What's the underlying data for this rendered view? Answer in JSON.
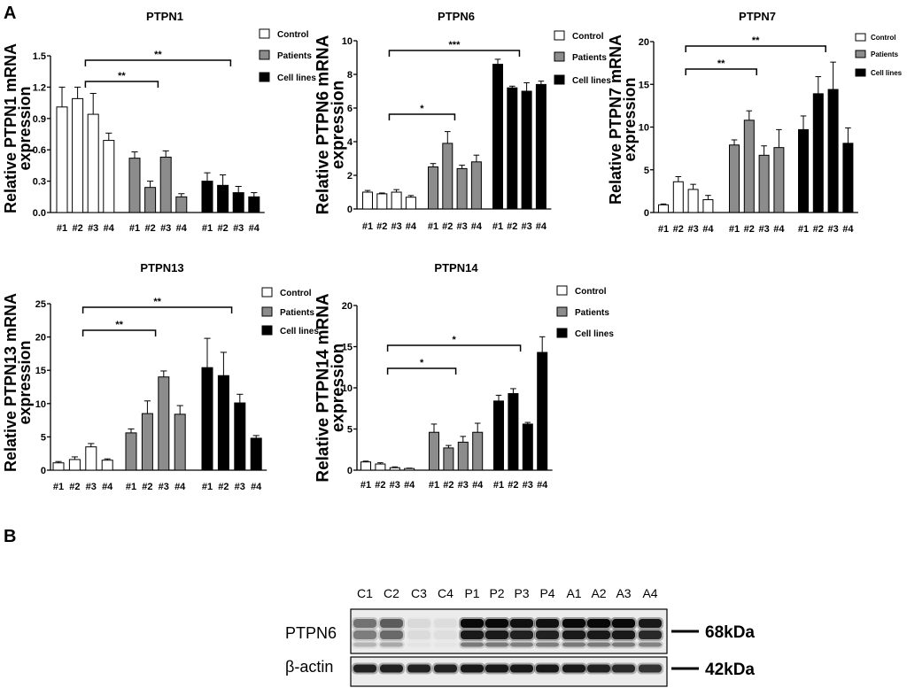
{
  "figure": {
    "panel_a_label": "A",
    "panel_b_label": "B"
  },
  "chart_data": [
    {
      "type": "bar",
      "title": "PTPN1",
      "ylabel": [
        "Relative PTPN1 mRNA",
        "expression"
      ],
      "ylim": [
        0,
        1.5
      ],
      "yticks": [
        "0.0",
        "0.3",
        "0.6",
        "0.9",
        "1.2",
        "1.5"
      ],
      "categories": [
        "#1",
        "#2",
        "#3",
        "#4"
      ],
      "grid": false,
      "legend_position": "top-right",
      "series": [
        {
          "name": "Control",
          "color": "#ffffff",
          "values": [
            1.01,
            1.09,
            0.94,
            0.69
          ],
          "errors": [
            0.19,
            0.11,
            0.2,
            0.07
          ]
        },
        {
          "name": "Patients",
          "color": "#8c8c8c",
          "values": [
            0.52,
            0.24,
            0.53,
            0.15
          ],
          "errors": [
            0.06,
            0.06,
            0.06,
            0.03
          ]
        },
        {
          "name": "Cell lines",
          "color": "#000000",
          "values": [
            0.3,
            0.26,
            0.19,
            0.15
          ],
          "errors": [
            0.08,
            0.1,
            0.06,
            0.04
          ]
        }
      ],
      "significance": [
        {
          "label": "**",
          "compare": [
            0,
            1
          ]
        },
        {
          "label": "**",
          "compare": [
            0,
            2
          ]
        }
      ]
    },
    {
      "type": "bar",
      "title": "PTPN6",
      "ylabel": [
        "Relative PTPN6 mRNA",
        "expression"
      ],
      "ylim": [
        0,
        10
      ],
      "yticks": [
        "0",
        "2",
        "4",
        "6",
        "8",
        "10"
      ],
      "categories": [
        "#1",
        "#2",
        "#3",
        "#4"
      ],
      "grid": false,
      "legend_position": "top-right",
      "series": [
        {
          "name": "Control",
          "color": "#ffffff",
          "values": [
            1.0,
            0.9,
            1.0,
            0.7
          ],
          "errors": [
            0.1,
            0.05,
            0.15,
            0.1
          ]
        },
        {
          "name": "Patients",
          "color": "#8c8c8c",
          "values": [
            2.5,
            3.9,
            2.4,
            2.8
          ],
          "errors": [
            0.2,
            0.7,
            0.2,
            0.4
          ]
        },
        {
          "name": "Cell lines",
          "color": "#000000",
          "values": [
            8.6,
            7.2,
            7.0,
            7.4
          ],
          "errors": [
            0.3,
            0.1,
            0.5,
            0.2
          ]
        }
      ],
      "significance": [
        {
          "label": "*",
          "compare": [
            0,
            1
          ]
        },
        {
          "label": "***",
          "compare": [
            0,
            2
          ]
        }
      ]
    },
    {
      "type": "bar",
      "title": "PTPN7",
      "ylabel": [
        "Relative PTPN7 mRNA",
        "expression"
      ],
      "ylim": [
        0,
        20
      ],
      "yticks": [
        "0",
        "5",
        "10",
        "15",
        "20"
      ],
      "categories": [
        "#1",
        "#2",
        "#3",
        "#4"
      ],
      "grid": false,
      "legend_position": "top-right",
      "series": [
        {
          "name": "Control",
          "color": "#ffffff",
          "values": [
            0.9,
            3.6,
            2.7,
            1.5
          ],
          "errors": [
            0.1,
            0.6,
            0.6,
            0.5
          ]
        },
        {
          "name": "Patients",
          "color": "#8c8c8c",
          "values": [
            7.9,
            10.8,
            6.7,
            7.6
          ],
          "errors": [
            0.6,
            1.1,
            1.1,
            2.1
          ]
        },
        {
          "name": "Cell lines",
          "color": "#000000",
          "values": [
            9.7,
            13.9,
            14.4,
            8.1
          ],
          "errors": [
            1.6,
            2.0,
            3.2,
            1.8
          ]
        }
      ],
      "significance": [
        {
          "label": "**",
          "compare": [
            0,
            1
          ]
        },
        {
          "label": "**",
          "compare": [
            0,
            2
          ]
        }
      ]
    },
    {
      "type": "bar",
      "title": "PTPN13",
      "ylabel": [
        "Relative PTPN13 mRNA",
        "expression"
      ],
      "ylim": [
        0,
        25
      ],
      "yticks": [
        "0",
        "5",
        "10",
        "15",
        "20",
        "25"
      ],
      "categories": [
        "#1",
        "#2",
        "#3",
        "#4"
      ],
      "grid": false,
      "legend_position": "top-right",
      "series": [
        {
          "name": "Control",
          "color": "#ffffff",
          "values": [
            1.1,
            1.6,
            3.5,
            1.5
          ],
          "errors": [
            0.2,
            0.4,
            0.5,
            0.2
          ]
        },
        {
          "name": "Patients",
          "color": "#8c8c8c",
          "values": [
            5.6,
            8.5,
            14.0,
            8.4
          ],
          "errors": [
            0.6,
            1.9,
            0.9,
            1.3
          ]
        },
        {
          "name": "Cell lines",
          "color": "#000000",
          "values": [
            15.4,
            14.2,
            10.1,
            4.8
          ],
          "errors": [
            4.4,
            3.5,
            1.3,
            0.4
          ]
        }
      ],
      "significance": [
        {
          "label": "**",
          "compare": [
            0,
            1
          ]
        },
        {
          "label": "**",
          "compare": [
            0,
            2
          ]
        }
      ]
    },
    {
      "type": "bar",
      "title": "PTPN14",
      "ylabel": [
        "Relative PTPN14 mRNA",
        "expression"
      ],
      "ylim": [
        0,
        20
      ],
      "yticks": [
        "0",
        "5",
        "10",
        "15",
        "20"
      ],
      "categories": [
        "#1",
        "#2",
        "#3",
        "#4"
      ],
      "grid": false,
      "legend_position": "top-right",
      "series": [
        {
          "name": "Control",
          "color": "#ffffff",
          "values": [
            1.0,
            0.75,
            0.3,
            0.2
          ],
          "errors": [
            0.1,
            0.15,
            0.1,
            0.05
          ]
        },
        {
          "name": "Patients",
          "color": "#8c8c8c",
          "values": [
            4.6,
            2.7,
            3.4,
            4.6
          ],
          "errors": [
            1.0,
            0.3,
            0.7,
            1.1
          ]
        },
        {
          "name": "Cell lines",
          "color": "#000000",
          "values": [
            8.4,
            9.3,
            5.6,
            14.3
          ],
          "errors": [
            0.7,
            0.6,
            0.2,
            1.9
          ]
        }
      ],
      "significance": [
        {
          "label": "*",
          "compare": [
            0,
            1
          ]
        },
        {
          "label": "*",
          "compare": [
            0,
            2
          ]
        }
      ]
    }
  ],
  "western_blot": {
    "lanes": [
      "C1",
      "C2",
      "C3",
      "C4",
      "P1",
      "P2",
      "P3",
      "P4",
      "A1",
      "A2",
      "A3",
      "A4"
    ],
    "rows": [
      {
        "label": "PTPN6",
        "size": "68kDa",
        "relative_intensity": [
          0.45,
          0.55,
          0.06,
          0.05,
          1.0,
          1.0,
          0.95,
          0.95,
          1.0,
          1.0,
          1.0,
          0.9
        ]
      },
      {
        "label": "β-actin",
        "size": "42kDa",
        "relative_intensity": [
          0.85,
          0.85,
          0.85,
          0.85,
          0.9,
          0.9,
          0.9,
          0.9,
          0.9,
          0.85,
          0.8,
          0.75
        ]
      }
    ]
  }
}
